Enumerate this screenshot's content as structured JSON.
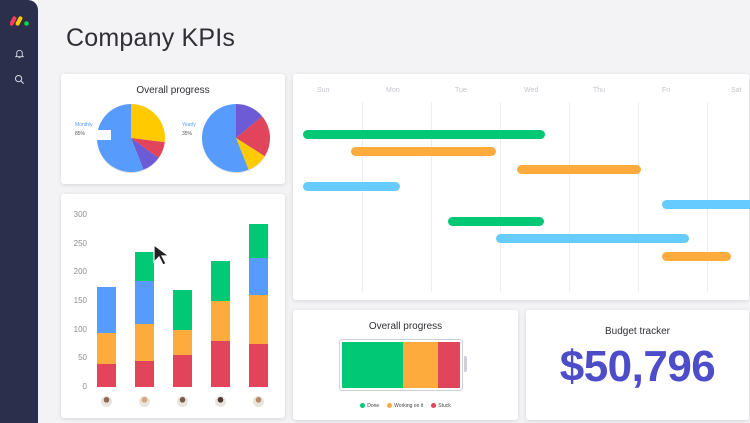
{
  "page": {
    "title": "Company KPIs"
  },
  "sidebar": {
    "logo_colors": [
      "#ff3d57",
      "#ffcb00",
      "#00d647"
    ],
    "items": [
      {
        "icon": "bell-icon"
      },
      {
        "icon": "search-icon"
      }
    ]
  },
  "colors": {
    "green": "#00c875",
    "orange": "#fdab3d",
    "red": "#e2445c",
    "blue": "#579bfc",
    "light_blue": "#66ccff",
    "purple": "#6c5bd4",
    "yellow": "#ffcb00",
    "accent": "#4d4dc9"
  },
  "overall_progress_pies": {
    "title": "Overall progress",
    "pies": [
      {
        "label": "Monthly",
        "percent_label": "85%",
        "slices": [
          {
            "value": 27,
            "color": "#ffcb00"
          },
          {
            "value": 8,
            "color": "#e2445c"
          },
          {
            "value": 9,
            "color": "#6c5bd4"
          },
          {
            "value": 56,
            "color": "#579bfc"
          }
        ]
      },
      {
        "label": "Yearly",
        "percent_label": "35%",
        "slices": [
          {
            "value": 14,
            "color": "#6c5bd4"
          },
          {
            "value": 20,
            "color": "#e2445c"
          },
          {
            "value": 10,
            "color": "#ffcb00"
          },
          {
            "value": 56,
            "color": "#579bfc"
          }
        ]
      }
    ]
  },
  "timeline": {
    "days": [
      "Sun",
      "Mon",
      "Tue",
      "Wed",
      "Thu",
      "Fri",
      "Sat"
    ],
    "bars": [
      {
        "start": 0,
        "end": 3.5,
        "color": "#00c875"
      },
      {
        "start": 0.7,
        "end": 2.8,
        "color": "#fdab3d"
      },
      {
        "start": 3.1,
        "end": 4.9,
        "color": "#fdab3d"
      },
      {
        "start": 0,
        "end": 1.4,
        "color": "#66ccff"
      },
      {
        "start": 5.2,
        "end": 6.6,
        "color": "#66ccff"
      },
      {
        "start": 2.1,
        "end": 3.5,
        "color": "#00c875"
      },
      {
        "start": 2.8,
        "end": 5.6,
        "color": "#66ccff"
      },
      {
        "start": 5.2,
        "end": 6.2,
        "color": "#fdab3d"
      }
    ]
  },
  "chart_data": {
    "type": "bar",
    "stacked": true,
    "yticks": [
      "300",
      "250",
      "200",
      "150",
      "100",
      "50",
      "0"
    ],
    "ylim": [
      0,
      300
    ],
    "series": [
      {
        "color": "#e2445c",
        "values": [
          40,
          45,
          55,
          80,
          75
        ]
      },
      {
        "color": "#fdab3d",
        "values": [
          55,
          65,
          45,
          70,
          85
        ]
      },
      {
        "color": "#579bfc",
        "values": [
          80,
          75,
          0,
          0,
          65
        ]
      },
      {
        "color": "#00c875",
        "values": [
          0,
          50,
          70,
          70,
          60
        ]
      }
    ],
    "avatars": [
      "avatar-1",
      "avatar-2",
      "avatar-3",
      "avatar-4",
      "avatar-5"
    ]
  },
  "status_progress": {
    "title": "Overall progress",
    "segments": [
      {
        "value": 47,
        "color": "#00c875"
      },
      {
        "value": 27,
        "color": "#fdab3d"
      },
      {
        "value": 17,
        "color": "#e2445c"
      }
    ],
    "legend": [
      {
        "label": "Done",
        "color": "#00c875"
      },
      {
        "label": "Working on it",
        "color": "#fdab3d"
      },
      {
        "label": "Stuck",
        "color": "#e2445c"
      }
    ]
  },
  "budget": {
    "title": "Budget tracker",
    "value": "$50,796"
  }
}
